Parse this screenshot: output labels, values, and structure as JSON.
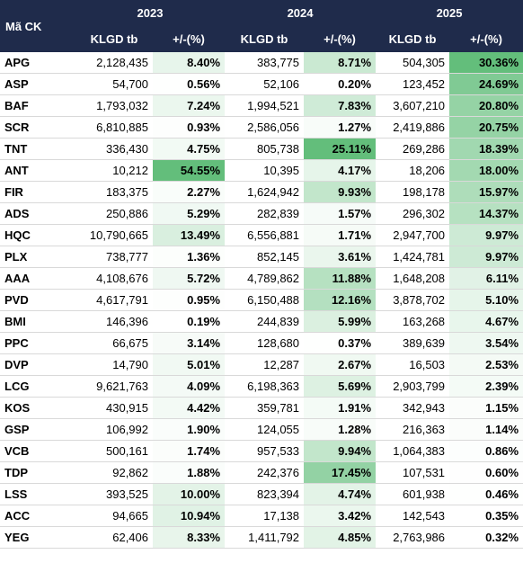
{
  "table": {
    "header": {
      "code": "Mã CK",
      "years": [
        "2023",
        "2024",
        "2025"
      ],
      "columns": [
        "KLGD tb",
        "+/-(%)",
        "KLGD tb",
        "+/-(%)",
        "KLGD tb",
        "+/-(%)"
      ]
    },
    "rows": [
      [
        "APG",
        "2,128,435",
        "8.40%",
        "383,775",
        "8.71%",
        "504,305",
        "30.36%"
      ],
      [
        "ASP",
        "54,700",
        "0.56%",
        "52,106",
        "0.20%",
        "123,452",
        "24.69%"
      ],
      [
        "BAF",
        "1,793,032",
        "7.24%",
        "1,994,521",
        "7.83%",
        "3,607,210",
        "20.80%"
      ],
      [
        "SCR",
        "6,810,885",
        "0.93%",
        "2,586,056",
        "1.27%",
        "2,419,886",
        "20.75%"
      ],
      [
        "TNT",
        "336,430",
        "4.75%",
        "805,738",
        "25.11%",
        "269,286",
        "18.39%"
      ],
      [
        "ANT",
        "10,212",
        "54.55%",
        "10,395",
        "4.17%",
        "18,206",
        "18.00%"
      ],
      [
        "FIR",
        "183,375",
        "2.27%",
        "1,624,942",
        "9.93%",
        "198,178",
        "15.97%"
      ],
      [
        "ADS",
        "250,886",
        "5.29%",
        "282,839",
        "1.57%",
        "296,302",
        "14.37%"
      ],
      [
        "HQC",
        "10,790,665",
        "13.49%",
        "6,556,881",
        "1.71%",
        "2,947,700",
        "9.97%"
      ],
      [
        "PLX",
        "738,777",
        "1.36%",
        "852,145",
        "3.61%",
        "1,424,781",
        "9.97%"
      ],
      [
        "AAA",
        "4,108,676",
        "5.72%",
        "4,789,862",
        "11.88%",
        "1,648,208",
        "6.11%"
      ],
      [
        "PVD",
        "4,617,791",
        "0.95%",
        "6,150,488",
        "12.16%",
        "3,878,702",
        "5.10%"
      ],
      [
        "BMI",
        "146,396",
        "0.19%",
        "244,839",
        "5.99%",
        "163,268",
        "4.67%"
      ],
      [
        "PPC",
        "66,675",
        "3.14%",
        "128,680",
        "0.37%",
        "389,639",
        "3.54%"
      ],
      [
        "DVP",
        "14,790",
        "5.01%",
        "12,287",
        "2.67%",
        "16,503",
        "2.53%"
      ],
      [
        "LCG",
        "9,621,763",
        "4.09%",
        "6,198,363",
        "5.69%",
        "2,903,799",
        "2.39%"
      ],
      [
        "KOS",
        "430,915",
        "4.42%",
        "359,781",
        "1.91%",
        "342,943",
        "1.15%"
      ],
      [
        "GSP",
        "106,992",
        "1.90%",
        "124,055",
        "1.28%",
        "216,363",
        "1.14%"
      ],
      [
        "VCB",
        "500,161",
        "1.74%",
        "957,533",
        "9.94%",
        "1,064,383",
        "0.86%"
      ],
      [
        "TDP",
        "92,862",
        "1.88%",
        "242,376",
        "17.45%",
        "107,531",
        "0.60%"
      ],
      [
        "LSS",
        "393,525",
        "10.00%",
        "823,394",
        "4.74%",
        "601,938",
        "0.46%"
      ],
      [
        "ACC",
        "94,665",
        "10.94%",
        "17,138",
        "3.42%",
        "142,543",
        "0.35%"
      ],
      [
        "YEG",
        "62,406",
        "8.33%",
        "1,411,792",
        "4.85%",
        "2,763,986",
        "0.32%"
      ]
    ]
  }
}
